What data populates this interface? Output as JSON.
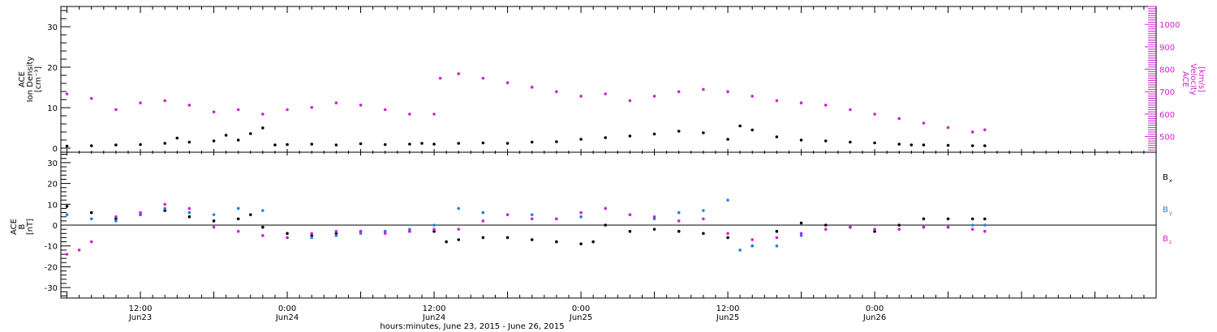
{
  "chart_data": [
    {
      "type": "scatter",
      "panel": "top",
      "ylabel_lines": [
        "ACE",
        "Ion Density",
        "[cm⁻³]"
      ],
      "ylim": [
        -1,
        35
      ],
      "yticks": [
        0,
        10,
        20,
        30
      ],
      "y2label_lines": [
        "ACE",
        "Velocity",
        "[km/s]"
      ],
      "y2lim": [
        430,
        1080
      ],
      "y2ticks": [
        500,
        600,
        700,
        800,
        900,
        1000
      ],
      "y2_color": "#d020d0",
      "series": [
        {
          "name": "Ion Density",
          "axis": "left",
          "color": "#000000",
          "x": [
            6,
            8,
            10,
            12,
            14,
            15,
            16,
            18,
            19,
            20,
            21,
            22,
            23,
            24,
            26,
            28,
            30,
            32,
            34,
            35,
            36,
            38,
            40,
            42,
            44,
            46,
            48,
            50,
            52,
            54,
            56,
            58,
            60,
            61,
            62,
            64,
            66,
            68,
            70,
            72,
            74,
            75,
            76,
            78,
            80,
            81
          ],
          "y": [
            0.5,
            0.6,
            0.8,
            0.9,
            1.2,
            2.5,
            1.5,
            1.8,
            3.2,
            2.0,
            3.6,
            5.0,
            0.8,
            0.9,
            1.0,
            0.8,
            1.1,
            0.9,
            1.0,
            1.2,
            1.0,
            1.2,
            1.3,
            1.2,
            1.5,
            1.6,
            2.2,
            2.6,
            3.0,
            3.5,
            4.2,
            3.8,
            2.2,
            5.5,
            4.5,
            2.8,
            2.0,
            1.8,
            1.5,
            1.3,
            1.0,
            0.8,
            0.8,
            0.7,
            0.6,
            0.6
          ]
        },
        {
          "name": "Velocity",
          "axis": "right",
          "color": "#d020d0",
          "x": [
            6,
            8,
            10,
            12,
            14,
            16,
            18,
            20,
            22,
            24,
            26,
            28,
            30,
            32,
            34,
            36,
            36.5,
            38,
            40,
            42,
            44,
            46,
            48,
            50,
            52,
            54,
            56,
            58,
            60,
            62,
            64,
            66,
            68,
            70,
            72,
            74,
            76,
            78,
            80,
            81
          ],
          "y": [
            690,
            670,
            620,
            650,
            660,
            640,
            610,
            620,
            600,
            620,
            630,
            650,
            640,
            620,
            600,
            600,
            760,
            780,
            760,
            740,
            720,
            700,
            680,
            690,
            660,
            680,
            700,
            710,
            700,
            680,
            660,
            650,
            640,
            620,
            600,
            580,
            560,
            540,
            520,
            530
          ]
        }
      ]
    },
    {
      "type": "scatter",
      "panel": "bottom",
      "ylabel_lines": [
        "ACE",
        "B",
        "[nT]"
      ],
      "ylim": [
        -35,
        35
      ],
      "yticks": [
        -30,
        -20,
        -10,
        0,
        10,
        20,
        30
      ],
      "legend_position": "right",
      "series": [
        {
          "name": "B",
          "subscript": "x",
          "color": "#000000",
          "x": [
            6,
            8,
            10,
            12,
            14,
            16,
            18,
            20,
            21,
            22,
            24,
            26,
            28,
            30,
            32,
            34,
            36,
            37,
            38,
            40,
            42,
            44,
            46,
            48,
            49,
            50,
            52,
            54,
            56,
            58,
            60,
            62,
            64,
            66,
            68,
            70,
            72,
            74,
            76,
            78,
            80,
            81
          ],
          "y": [
            9,
            6,
            3,
            5,
            7,
            4,
            2,
            3,
            5,
            -1,
            -4,
            -5,
            -4,
            -3,
            -3,
            -3,
            -3,
            -8,
            -7,
            -6,
            -6,
            -7,
            -8,
            -9,
            -8,
            0,
            -3,
            -2,
            -3,
            -4,
            -6,
            -10,
            -3,
            1,
            0,
            -1,
            -3,
            0,
            3,
            3,
            3,
            3
          ]
        },
        {
          "name": "B",
          "subscript": "y",
          "color": "#2080e0",
          "x": [
            6,
            8,
            10,
            12,
            14,
            16,
            18,
            20,
            22,
            24,
            26,
            28,
            30,
            32,
            34,
            36,
            38,
            40,
            42,
            44,
            46,
            48,
            50,
            52,
            54,
            56,
            58,
            60,
            61,
            62,
            64,
            66,
            68,
            70,
            72,
            74,
            76,
            78,
            80,
            81
          ],
          "y": [
            5,
            3,
            2,
            5,
            8,
            6,
            5,
            8,
            7,
            -6,
            -6,
            -5,
            -4,
            -3,
            -2,
            0,
            8,
            6,
            5,
            5,
            3,
            4,
            8,
            5,
            3,
            6,
            7,
            12,
            -12,
            -10,
            -10,
            -5,
            -2,
            -1,
            -2,
            -2,
            -1,
            -1,
            0,
            0
          ]
        },
        {
          "name": "B",
          "subscript": "z",
          "color": "#d020d0",
          "x": [
            6,
            7,
            8,
            10,
            12,
            14,
            16,
            18,
            20,
            22,
            24,
            26,
            28,
            30,
            32,
            34,
            36,
            38,
            40,
            42,
            44,
            46,
            48,
            50,
            52,
            54,
            56,
            58,
            60,
            62,
            64,
            66,
            68,
            70,
            72,
            74,
            76,
            78,
            80,
            81
          ],
          "y": [
            -14,
            -12,
            -8,
            4,
            6,
            10,
            8,
            -1,
            -3,
            -5,
            -6,
            -4,
            -3,
            -3,
            -4,
            -3,
            -2,
            -2,
            2,
            5,
            3,
            3,
            6,
            8,
            5,
            4,
            2,
            3,
            -4,
            -7,
            -6,
            -4,
            -2,
            -1,
            -2,
            -2,
            -1,
            -1,
            -2,
            -3
          ]
        }
      ]
    }
  ],
  "x_axis": {
    "xlim": [
      5.5,
      95
    ],
    "ticks": [
      {
        "x": 12,
        "line1": "12:00",
        "line2": "Jun23"
      },
      {
        "x": 24,
        "line1": "0:00",
        "line2": "Jun24"
      },
      {
        "x": 36,
        "line1": "12:00",
        "line2": "Jun24"
      },
      {
        "x": 48,
        "line1": "0:00",
        "line2": "Jun25"
      },
      {
        "x": 60,
        "line1": "12:00",
        "line2": "Jun25"
      },
      {
        "x": 72,
        "line1": "0:00",
        "line2": "Jun26"
      }
    ],
    "minor_step": 1,
    "label": "hours:minutes, June 23, 2015 - June 26, 2015"
  }
}
